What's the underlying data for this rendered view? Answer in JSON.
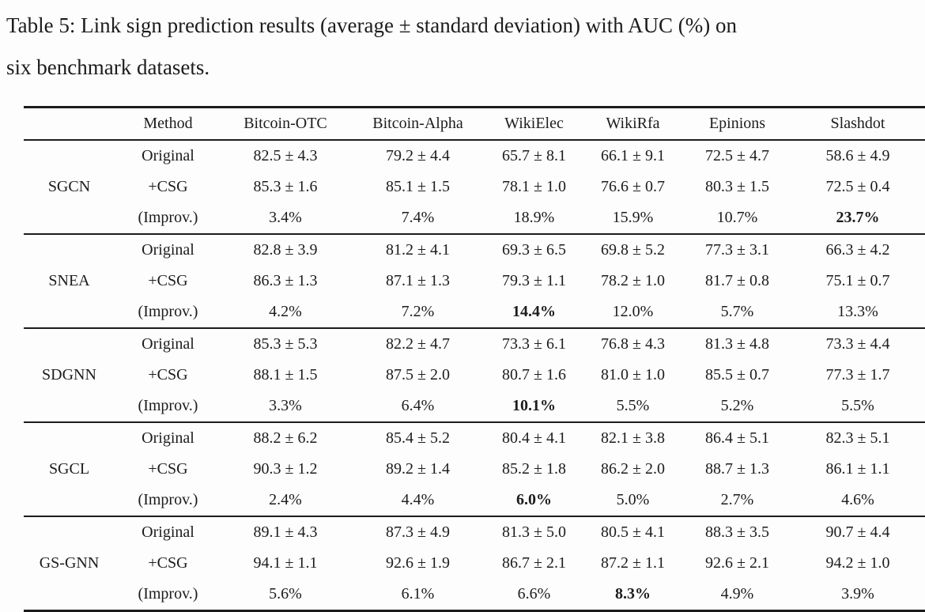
{
  "caption": {
    "line1": "Table 5: Link sign prediction results (average ± standard deviation) with AUC (%) on",
    "line2": "six benchmark datasets."
  },
  "table": {
    "columns": [
      "",
      "Method",
      "Bitcoin-OTC",
      "Bitcoin-Alpha",
      "WikiElec",
      "WikiRfa",
      "Epinions",
      "Slashdot"
    ],
    "row_labels": [
      "Original",
      "+CSG",
      "(Improv.)"
    ],
    "groups": [
      {
        "model": "SGCN",
        "original": [
          "82.5 ± 4.3",
          "79.2 ± 4.4",
          "65.7 ± 8.1",
          "66.1 ± 9.1",
          "72.5 ± 4.7",
          "58.6 ± 4.9"
        ],
        "csg": [
          "85.3 ± 1.6",
          "85.1 ± 1.5",
          "78.1 ± 1.0",
          "76.6 ± 0.7",
          "80.3 ± 1.5",
          "72.5 ± 0.4"
        ],
        "improv": [
          "3.4%",
          "7.4%",
          "18.9%",
          "15.9%",
          "10.7%",
          "23.7%"
        ],
        "improv_bold_index": 5
      },
      {
        "model": "SNEA",
        "original": [
          "82.8 ± 3.9",
          "81.2 ± 4.1",
          "69.3 ± 6.5",
          "69.8 ± 5.2",
          "77.3 ± 3.1",
          "66.3 ± 4.2"
        ],
        "csg": [
          "86.3 ± 1.3",
          "87.1 ± 1.3",
          "79.3 ± 1.1",
          "78.2 ± 1.0",
          "81.7 ± 0.8",
          "75.1 ± 0.7"
        ],
        "improv": [
          "4.2%",
          "7.2%",
          "14.4%",
          "12.0%",
          "5.7%",
          "13.3%"
        ],
        "improv_bold_index": 2
      },
      {
        "model": "SDGNN",
        "original": [
          "85.3 ± 5.3",
          "82.2 ± 4.7",
          "73.3 ± 6.1",
          "76.8 ± 4.3",
          "81.3 ± 4.8",
          "73.3 ± 4.4"
        ],
        "csg": [
          "88.1 ± 1.5",
          "87.5 ± 2.0",
          "80.7 ± 1.6",
          "81.0 ± 1.0",
          "85.5 ± 0.7",
          "77.3 ± 1.7"
        ],
        "improv": [
          "3.3%",
          "6.4%",
          "10.1%",
          "5.5%",
          "5.2%",
          "5.5%"
        ],
        "improv_bold_index": 2
      },
      {
        "model": "SGCL",
        "original": [
          "88.2 ± 6.2",
          "85.4 ± 5.2",
          "80.4 ± 4.1",
          "82.1 ± 3.8",
          "86.4 ± 5.1",
          "82.3 ± 5.1"
        ],
        "csg": [
          "90.3 ± 1.2",
          "89.2 ± 1.4",
          "85.2 ± 1.8",
          "86.2 ± 2.0",
          "88.7 ± 1.3",
          "86.1 ± 1.1"
        ],
        "improv": [
          "2.4%",
          "4.4%",
          "6.0%",
          "5.0%",
          "2.7%",
          "4.6%"
        ],
        "improv_bold_index": 2
      },
      {
        "model": "GS-GNN",
        "original": [
          "89.1 ± 4.3",
          "87.3 ± 4.9",
          "81.3 ± 5.0",
          "80.5 ± 4.1",
          "88.3 ± 3.5",
          "90.7 ± 4.4"
        ],
        "csg": [
          "94.1 ± 1.1",
          "92.6 ± 1.9",
          "86.7 ± 2.1",
          "87.2 ± 1.1",
          "92.6 ± 2.1",
          "94.2 ± 1.0"
        ],
        "improv": [
          "5.6%",
          "6.1%",
          "6.6%",
          "8.3%",
          "4.9%",
          "3.9%"
        ],
        "improv_bold_index": 3
      }
    ]
  },
  "colors": {
    "background": "#fdfdfd",
    "text": "#1c1c1c",
    "rule": "#1c1c1c"
  }
}
